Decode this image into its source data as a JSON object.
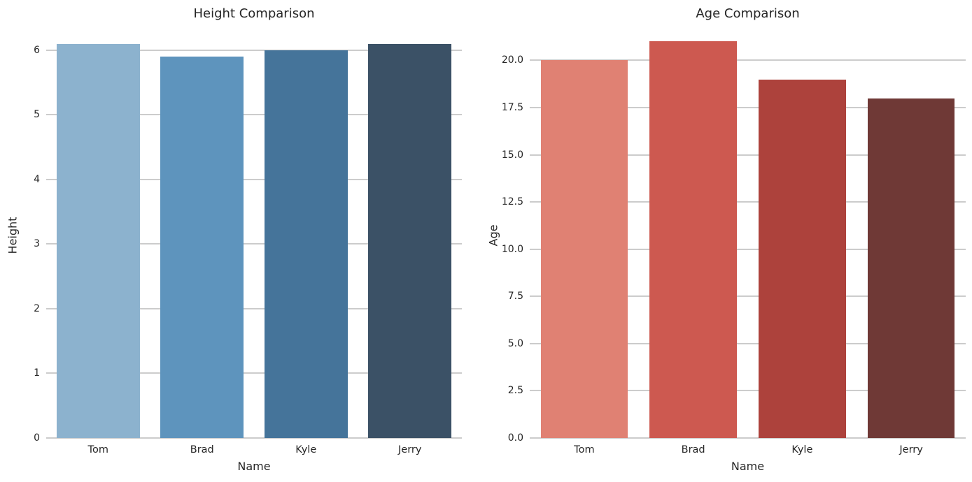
{
  "styles": {
    "background": "#ffffff",
    "grid_color": "#cccccc",
    "text_color": "#262626"
  },
  "chart_data": [
    {
      "type": "bar",
      "title": "Height Comparison",
      "xlabel": "Name",
      "ylabel": "Height",
      "categories": [
        "Tom",
        "Brad",
        "Kyle",
        "Jerry"
      ],
      "values": [
        6.1,
        5.9,
        6.0,
        6.1
      ],
      "bar_colors": [
        "#8cb2ce",
        "#5e94bd",
        "#45749a",
        "#3b5166"
      ],
      "yticks": [
        0,
        1,
        2,
        3,
        4,
        5,
        6
      ],
      "ytick_labels": [
        "0",
        "1",
        "2",
        "3",
        "4",
        "5",
        "6"
      ],
      "ylim": [
        0,
        6.27
      ],
      "grid": true,
      "legend": null
    },
    {
      "type": "bar",
      "title": "Age Comparison",
      "xlabel": "Name",
      "ylabel": "Age",
      "categories": [
        "Tom",
        "Brad",
        "Kyle",
        "Jerry"
      ],
      "values": [
        20,
        21,
        19,
        18
      ],
      "bar_colors": [
        "#e08173",
        "#cd5950",
        "#ad423c",
        "#6f3936"
      ],
      "yticks": [
        0,
        2.5,
        5,
        7.5,
        10,
        12.5,
        15,
        17.5,
        20
      ],
      "ytick_labels": [
        "0.0",
        "2.5",
        "5.0",
        "7.5",
        "10.0",
        "12.5",
        "15.0",
        "17.5",
        "20.0"
      ],
      "ylim": [
        0,
        21.46
      ],
      "grid": true,
      "legend": null
    }
  ]
}
